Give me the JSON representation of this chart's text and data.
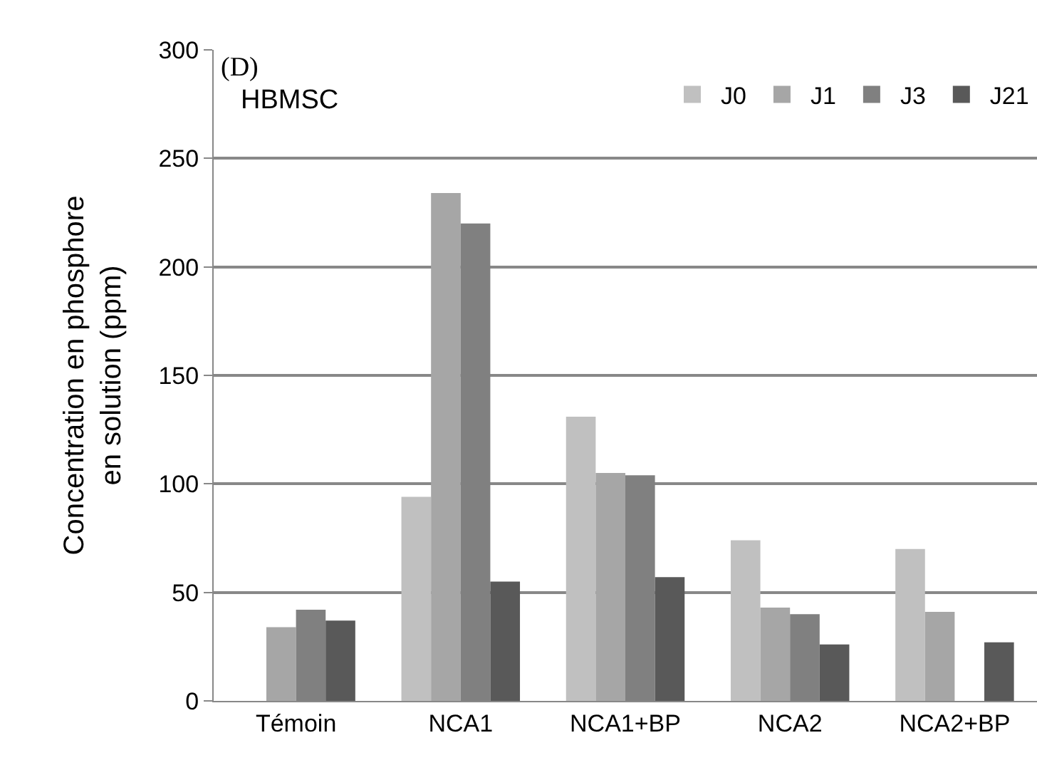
{
  "chart_data": {
    "type": "bar",
    "ylabel": "Concentration en phosphore\nen solution (ppm)",
    "categories": [
      "Témoin",
      "NCA1",
      "NCA1+BP",
      "NCA2",
      "NCA2+BP"
    ],
    "series": [
      {
        "name": "J0",
        "color": "#c0c0c0",
        "values": [
          null,
          94,
          131,
          74,
          70
        ]
      },
      {
        "name": "J1",
        "color": "#a6a6a6",
        "values": [
          34,
          234,
          105,
          43,
          41
        ]
      },
      {
        "name": "J3",
        "color": "#808080",
        "values": [
          42,
          220,
          104,
          40,
          null
        ]
      },
      {
        "name": "J21",
        "color": "#595959",
        "values": [
          37,
          55,
          57,
          26,
          27
        ]
      }
    ],
    "ylim": [
      0,
      300
    ],
    "yticks": [
      0,
      50,
      100,
      150,
      200,
      250,
      300
    ],
    "grid": "y",
    "legend": "top right",
    "annotations": [
      "(D)",
      "HBMSC"
    ]
  }
}
